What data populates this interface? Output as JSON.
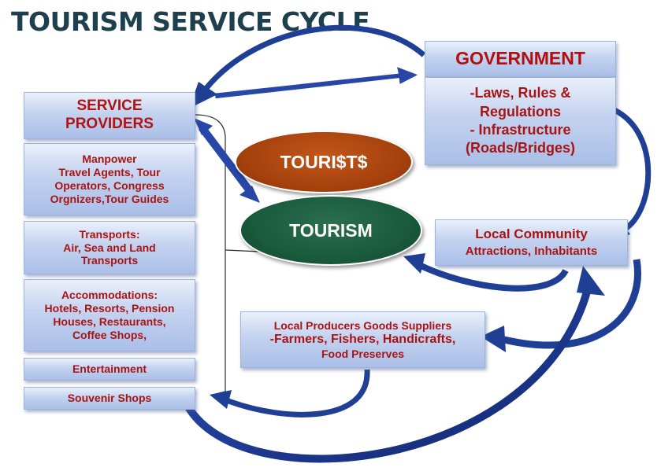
{
  "title": "TOURISM SERVICE CYCLE",
  "service_providers": {
    "heading": [
      "SERVICE",
      "PROVIDERS"
    ],
    "manpower": [
      "Manpower",
      "Travel Agents, Tour",
      "Operators, Congress",
      "Orgnizers,Tour Guides"
    ],
    "transports": [
      "Transports:",
      "Air, Sea and Land",
      "Transports"
    ],
    "accommodations": [
      "Accommodations:",
      "Hotels, Resorts, Pension",
      "Houses, Restaurants,",
      "Coffee Shops,"
    ],
    "entertainment": "Entertainment",
    "souvenir": "Souvenir Shops"
  },
  "government": {
    "heading": "GOVERNMENT",
    "lines": [
      "-Laws, Rules &",
      "Regulations",
      "- Infrastructure",
      "(Roads/Bridges)"
    ]
  },
  "tourists": "TOURI$T$",
  "tourism": "TOURISM",
  "local_community": {
    "heading": "Local Community",
    "subline": "Attractions, Inhabitants"
  },
  "local_producers": {
    "line1": "Local Producers Goods Suppliers",
    "line2": "-Farmers, Fishers, Handicrafts,",
    "line3": "Food Preserves"
  },
  "colors": {
    "title": "#1e3f4d",
    "box_text": "#a81414",
    "arrow": "#1f3f95",
    "tourists_fill": "#a7420d",
    "tourism_fill": "#1a5a3d"
  }
}
